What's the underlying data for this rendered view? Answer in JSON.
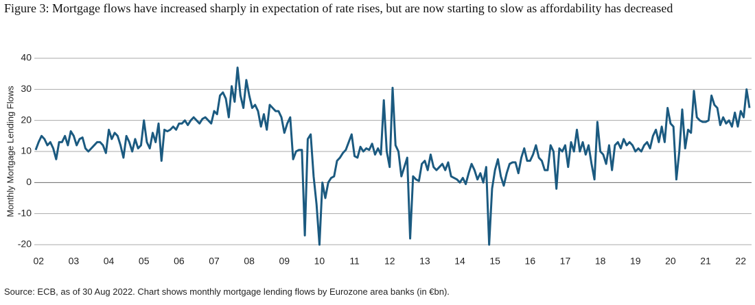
{
  "chart_data": {
    "type": "line",
    "title": "Figure 3: Mortgage flows have increased sharply in expectation of rate rises, but are now starting to slow as affordability has decreased",
    "y_label": "Monthly Mortgage Lending Flows",
    "source": "Source: ECB, as of 30 Aug 2022. Chart shows monthly mortgage lending flows by Eurozone area banks (in €bn).",
    "categories": [
      null,
      "02",
      null,
      null,
      null,
      null,
      null,
      null,
      null,
      null,
      null,
      null,
      null,
      "03",
      null,
      null,
      null,
      null,
      null,
      null,
      null,
      null,
      null,
      null,
      null,
      "04",
      null,
      null,
      null,
      null,
      null,
      null,
      null,
      null,
      null,
      null,
      null,
      "05",
      null,
      null,
      null,
      null,
      null,
      null,
      null,
      null,
      null,
      null,
      null,
      "06",
      null,
      null,
      null,
      null,
      null,
      null,
      null,
      null,
      null,
      null,
      null,
      "07",
      null,
      null,
      null,
      null,
      null,
      null,
      null,
      null,
      null,
      null,
      null,
      "08",
      null,
      null,
      null,
      null,
      null,
      null,
      null,
      null,
      null,
      null,
      null,
      "09",
      null,
      null,
      null,
      null,
      null,
      null,
      null,
      null,
      null,
      null,
      null,
      "10",
      null,
      null,
      null,
      null,
      null,
      null,
      null,
      null,
      null,
      null,
      null,
      "11",
      null,
      null,
      null,
      null,
      null,
      null,
      null,
      null,
      null,
      null,
      null,
      "12",
      null,
      null,
      null,
      null,
      null,
      null,
      null,
      null,
      null,
      null,
      null,
      "13",
      null,
      null,
      null,
      null,
      null,
      null,
      null,
      null,
      null,
      null,
      null,
      "14",
      null,
      null,
      null,
      null,
      null,
      null,
      null,
      null,
      null,
      null,
      null,
      "15",
      null,
      null,
      null,
      null,
      null,
      null,
      null,
      null,
      null,
      null,
      null,
      "16",
      null,
      null,
      null,
      null,
      null,
      null,
      null,
      null,
      null,
      null,
      null,
      "17",
      null,
      null,
      null,
      null,
      null,
      null,
      null,
      null,
      null,
      null,
      null,
      "18",
      null,
      null,
      null,
      null,
      null,
      null,
      null,
      null,
      null,
      null,
      null,
      "19",
      null,
      null,
      null,
      null,
      null,
      null,
      null,
      null,
      null,
      null,
      null,
      "20",
      null,
      null,
      null,
      null,
      null,
      null,
      null,
      null,
      null,
      null,
      null,
      "21",
      null,
      null,
      null,
      null,
      null,
      null,
      null,
      null,
      null,
      null,
      null,
      "22",
      null,
      null,
      null
    ],
    "series": [
      {
        "color": "#1b5a80",
        "values": [
          10.5,
          13,
          15,
          14,
          12,
          13,
          11,
          7.5,
          13,
          13,
          15,
          12,
          16.5,
          15,
          12,
          14,
          14.5,
          11,
          10,
          11,
          12,
          13,
          13,
          12,
          9.5,
          17,
          14,
          16,
          15,
          12,
          8,
          15,
          13,
          10,
          14,
          11,
          12,
          20,
          13,
          11,
          16,
          13,
          19,
          7,
          17,
          16.5,
          17,
          18,
          17,
          19,
          19,
          20,
          18.5,
          20,
          21,
          20,
          19,
          20.5,
          21,
          20,
          19,
          23,
          22,
          28,
          29,
          27,
          21,
          31,
          26,
          37,
          28,
          24,
          33,
          28,
          24,
          25,
          23,
          18,
          22,
          17,
          25,
          24,
          23,
          23,
          21,
          16,
          19,
          21,
          7.5,
          10,
          10.5,
          10.5,
          -17,
          14,
          15.5,
          2,
          -7,
          -20,
          0,
          -5,
          0,
          1.5,
          2,
          7,
          8,
          9.5,
          10.5,
          13,
          15.5,
          8.5,
          8,
          11.5,
          10,
          11,
          10.5,
          12.5,
          9,
          11,
          9,
          26.5,
          10,
          5,
          30.5,
          12,
          10,
          2,
          5,
          8,
          -18,
          2,
          1,
          0.5,
          6,
          7,
          4,
          9,
          5,
          4,
          5,
          6,
          4,
          6.5,
          2,
          1.5,
          1,
          0,
          1.5,
          -0.5,
          3,
          6,
          4,
          1,
          3,
          0,
          5,
          -20,
          -2,
          4,
          7.5,
          2,
          -1,
          3,
          6,
          6.5,
          6.5,
          3,
          8,
          11,
          7,
          7,
          9,
          12,
          8,
          7,
          4,
          4,
          12,
          10,
          -2,
          11,
          10,
          12,
          5,
          13,
          10,
          17,
          10,
          13,
          9,
          12,
          6,
          1,
          19.5,
          10,
          9,
          6,
          12,
          4,
          12,
          13,
          11,
          14,
          12,
          13,
          12,
          10,
          11,
          10,
          12,
          13,
          11,
          15,
          17,
          13,
          18,
          13,
          24,
          19,
          18,
          1,
          10,
          23.5,
          11,
          17,
          16,
          29.5,
          21,
          20,
          19.5,
          19.5,
          20,
          28,
          25,
          24,
          18.5,
          21,
          19,
          20,
          18,
          22.5,
          18,
          23,
          21,
          30,
          24
        ]
      }
    ],
    "ylim": [
      -20,
      40
    ],
    "yticks": [
      -20,
      -10,
      0,
      10,
      20,
      30,
      40
    ],
    "grid": true
  }
}
